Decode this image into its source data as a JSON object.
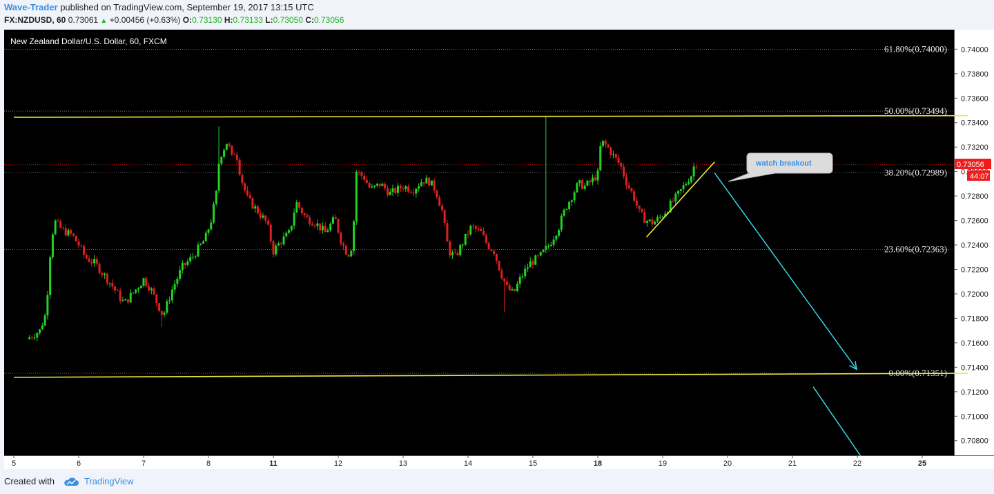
{
  "header": {
    "author": "Wave-Trader",
    "published_text": "published on TradingView.com, September 19, 2017 13:15 UTC",
    "symbol": "FX:NZDUSD, 60",
    "last": "0.73061",
    "change": "+0.00456 (+0.63%)",
    "o_label": "O:",
    "o": "0.73130",
    "h_label": "H:",
    "h": "0.73133",
    "l_label": "L:",
    "l": "0.73050",
    "c_label": "C:",
    "c": "0.73056"
  },
  "footer": {
    "created_with": "Created with",
    "brand": "TradingView"
  },
  "colors": {
    "up": "#22d322",
    "down": "#e01f1f",
    "trendline": "#f0e838",
    "arrow": "#3ad6e6",
    "price_tag": "#f01c1c"
  },
  "chart_data": {
    "type": "candlestick",
    "title": "New Zealand Dollar/U.S. Dollar, 60, FXCM",
    "ylim": [
      0.7068,
      0.7416
    ],
    "y_ticks": [
      "0.74000",
      "0.73800",
      "0.73600",
      "0.73400",
      "0.73200",
      "0.73000",
      "0.72800",
      "0.72600",
      "0.72400",
      "0.72200",
      "0.72000",
      "0.71800",
      "0.71600",
      "0.71400",
      "0.71200",
      "0.71000",
      "0.70800"
    ],
    "x_ticks": [
      {
        "label": "5",
        "day": 5,
        "bold": false
      },
      {
        "label": "6",
        "day": 6,
        "bold": false
      },
      {
        "label": "7",
        "day": 7,
        "bold": false
      },
      {
        "label": "8",
        "day": 8,
        "bold": false
      },
      {
        "label": "11",
        "day": 11,
        "bold": true
      },
      {
        "label": "12",
        "day": 12,
        "bold": false
      },
      {
        "label": "13",
        "day": 13,
        "bold": false
      },
      {
        "label": "14",
        "day": 14,
        "bold": false
      },
      {
        "label": "15",
        "day": 15,
        "bold": false
      },
      {
        "label": "18",
        "day": 18,
        "bold": true
      },
      {
        "label": "19",
        "day": 19,
        "bold": false
      },
      {
        "label": "20",
        "day": 20,
        "bold": false
      },
      {
        "label": "21",
        "day": 21,
        "bold": false
      },
      {
        "label": "22",
        "day": 22,
        "bold": false
      },
      {
        "label": "25",
        "day": 25,
        "bold": true
      }
    ],
    "current_price": "0.73056",
    "countdown": "44:07",
    "fib_levels": [
      {
        "label": "61.80%(0.74000)",
        "value": 0.74
      },
      {
        "label": "50.00%(0.73494)",
        "value": 0.73494
      },
      {
        "label": "38.20%(0.72989)",
        "value": 0.72989
      },
      {
        "label": "23.60%(0.72363)",
        "value": 0.72363
      },
      {
        "label": "0.00%(0.71351)",
        "value": 0.71351
      }
    ],
    "annotation": "watch breakout",
    "price_path": [
      [
        0.2,
        0.7163
      ],
      [
        0.4,
        0.717
      ],
      [
        0.5,
        0.7185
      ],
      [
        0.55,
        0.7228
      ],
      [
        0.62,
        0.726
      ],
      [
        0.75,
        0.7252
      ],
      [
        0.9,
        0.7248
      ],
      [
        1.0,
        0.724
      ],
      [
        1.1,
        0.723
      ],
      [
        1.25,
        0.7225
      ],
      [
        1.5,
        0.7208
      ],
      [
        1.7,
        0.7192
      ],
      [
        1.9,
        0.7205
      ],
      [
        2.0,
        0.7212
      ],
      [
        2.1,
        0.7205
      ],
      [
        2.3,
        0.7182
      ],
      [
        2.45,
        0.7205
      ],
      [
        2.6,
        0.7222
      ],
      [
        2.75,
        0.723
      ],
      [
        2.95,
        0.7245
      ],
      [
        3.05,
        0.7262
      ],
      [
        3.12,
        0.7282
      ],
      [
        3.15,
        0.7305
      ],
      [
        3.2,
        0.7315
      ],
      [
        3.3,
        0.7326
      ],
      [
        3.35,
        0.731
      ],
      [
        3.42,
        0.7318
      ],
      [
        3.5,
        0.7295
      ],
      [
        3.6,
        0.7278
      ],
      [
        3.75,
        0.7268
      ],
      [
        3.9,
        0.7258
      ],
      [
        4.0,
        0.7235
      ],
      [
        4.1,
        0.7242
      ],
      [
        4.25,
        0.725
      ],
      [
        4.35,
        0.7275
      ],
      [
        4.5,
        0.7262
      ],
      [
        4.65,
        0.7258
      ],
      [
        4.8,
        0.725
      ],
      [
        4.95,
        0.7262
      ],
      [
        5.05,
        0.7242
      ],
      [
        5.15,
        0.7232
      ],
      [
        5.22,
        0.724
      ],
      [
        5.28,
        0.73
      ],
      [
        5.4,
        0.7295
      ],
      [
        5.5,
        0.7285
      ],
      [
        5.65,
        0.729
      ],
      [
        5.8,
        0.7282
      ],
      [
        6.0,
        0.7288
      ],
      [
        6.15,
        0.7285
      ],
      [
        6.3,
        0.7293
      ],
      [
        6.4,
        0.7292
      ],
      [
        6.5,
        0.7285
      ],
      [
        6.6,
        0.7268
      ],
      [
        6.7,
        0.7235
      ],
      [
        6.8,
        0.723
      ],
      [
        6.95,
        0.7245
      ],
      [
        7.05,
        0.7255
      ],
      [
        7.2,
        0.725
      ],
      [
        7.3,
        0.724
      ],
      [
        7.4,
        0.7235
      ],
      [
        7.5,
        0.7218
      ],
      [
        7.6,
        0.7205
      ],
      [
        7.7,
        0.72
      ],
      [
        7.8,
        0.7212
      ],
      [
        7.95,
        0.7225
      ],
      [
        8.1,
        0.723
      ],
      [
        8.25,
        0.724
      ],
      [
        8.4,
        0.7255
      ],
      [
        8.5,
        0.727
      ],
      [
        8.6,
        0.728
      ],
      [
        8.7,
        0.729
      ],
      [
        8.8,
        0.7288
      ],
      [
        8.9,
        0.7292
      ],
      [
        9.0,
        0.7298
      ],
      [
        9.05,
        0.7325
      ],
      [
        9.15,
        0.732
      ],
      [
        9.25,
        0.7312
      ],
      [
        9.35,
        0.7305
      ],
      [
        9.45,
        0.729
      ],
      [
        9.55,
        0.728
      ],
      [
        9.65,
        0.7265
      ],
      [
        9.75,
        0.726
      ],
      [
        9.85,
        0.7258
      ],
      [
        9.95,
        0.7262
      ],
      [
        10.05,
        0.7268
      ],
      [
        10.15,
        0.7275
      ],
      [
        10.25,
        0.7282
      ],
      [
        10.35,
        0.729
      ],
      [
        10.45,
        0.7298
      ],
      [
        10.5,
        0.7308
      ],
      [
        10.55,
        0.7306
      ]
    ],
    "spikes": [
      {
        "t": 3.15,
        "high": 0.7337
      },
      {
        "t": 8.2,
        "high": 0.7345
      },
      {
        "t": 7.55,
        "low": 0.7185
      },
      {
        "t": 2.3,
        "low": 0.7173
      }
    ],
    "trendlines": [
      {
        "name": "upper-channel",
        "from": [
          0.0,
          0.73444
        ],
        "to": [
          14.7,
          0.73457
        ]
      },
      {
        "name": "lower-channel",
        "from": [
          0.0,
          0.71318
        ],
        "to": [
          14.7,
          0.71351
        ]
      },
      {
        "name": "rising-support",
        "from": [
          9.75,
          0.72464
        ],
        "to": [
          10.8,
          0.73079
        ]
      }
    ],
    "projection_arrows": [
      {
        "from": [
          10.8,
          0.72989
        ],
        "to": [
          12.99,
          0.71383
        ],
        "head": true
      },
      {
        "from": [
          12.32,
          0.7124
        ],
        "to": [
          13.05,
          0.70676
        ],
        "head": false
      }
    ]
  }
}
